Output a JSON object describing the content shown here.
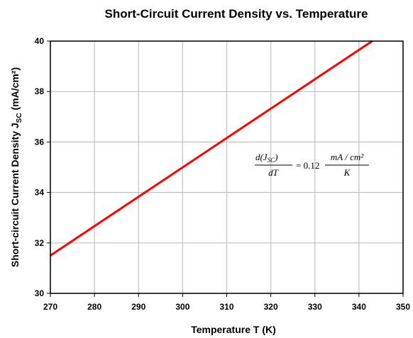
{
  "chart_data": {
    "type": "line",
    "title": "Short-Circuit Current Density vs. Temperature",
    "xlabel": "Temperature T (K)",
    "ylabel": {
      "prefix": "Short-circuit Current Density J",
      "subscript": "SC",
      "suffix": " (mA/cm²)"
    },
    "xlim": [
      270,
      350
    ],
    "ylim": [
      30,
      40
    ],
    "xticks": [
      "270",
      "280",
      "290",
      "300",
      "310",
      "320",
      "330",
      "340",
      "350"
    ],
    "yticks": [
      "30",
      "32",
      "34",
      "36",
      "38",
      "40"
    ],
    "grid": true,
    "legend": "none",
    "series": [
      {
        "color": "#ff0000",
        "x": [
          270,
          343
        ],
        "y": [
          31.5,
          40
        ]
      }
    ],
    "annotation": {
      "lhs_num_main": "d(J",
      "lhs_num_sub": "SC",
      "lhs_num_close": ")",
      "lhs_den": "dT",
      "equals": "= 0.12",
      "rhs_num": "mA / cm²",
      "rhs_den": "K"
    }
  }
}
